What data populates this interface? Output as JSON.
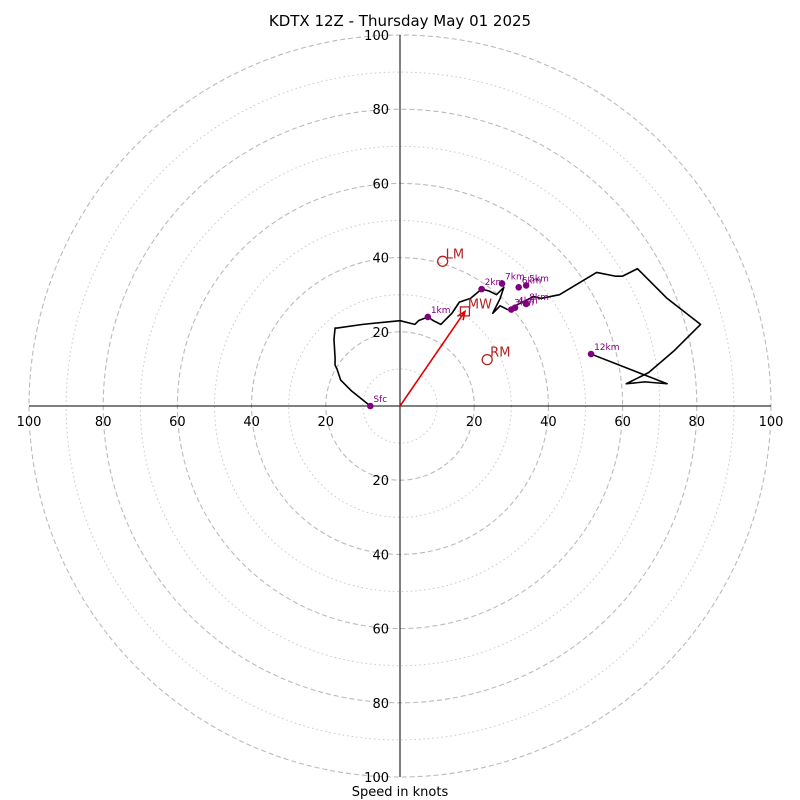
{
  "chart_data": {
    "type": "scatter",
    "subtype": "hodograph",
    "title": "KDTX 12Z - Thursday May 01 2025",
    "xlabel": "Speed in knots",
    "ylabel": "",
    "xlim": [
      -100,
      100
    ],
    "ylim": [
      -100,
      100
    ],
    "rings_dashed": [
      20,
      40,
      60,
      80,
      100
    ],
    "rings_dotted": [
      10,
      30,
      50,
      70,
      90
    ],
    "grid": true,
    "colors": {
      "hodograph": "#000000",
      "height_markers": "#800080",
      "storm_motion": "#b22222",
      "shear_vector": "#e00000",
      "grid": "#bbbbbb"
    },
    "ticks": {
      "left": [
        "100",
        "80",
        "60",
        "40",
        "20"
      ],
      "right": [
        "20",
        "40",
        "60",
        "80",
        "100"
      ],
      "top": [
        "20",
        "40",
        "60",
        "80",
        "100"
      ],
      "bottom": [
        "20",
        "40",
        "60",
        "80",
        "100"
      ]
    },
    "hodograph": {
      "u": [
        -8,
        -13,
        -16,
        -17,
        -17.5,
        -17.5,
        -17.8,
        -17.5,
        -17,
        -10,
        0,
        4,
        5,
        7.5,
        9,
        11,
        14,
        16,
        19,
        22,
        24,
        26,
        28,
        27,
        25,
        27,
        29,
        30,
        31,
        33,
        36,
        38,
        43,
        48,
        53,
        58,
        60,
        64,
        72,
        81,
        74,
        67,
        61,
        66,
        72,
        51.5
      ],
      "v": [
        0,
        4,
        7,
        10,
        11,
        13,
        18,
        21,
        21,
        22,
        23,
        22,
        23,
        24,
        23,
        22,
        25,
        28,
        29,
        31.5,
        31,
        30,
        32,
        29,
        25,
        27,
        26,
        26,
        27,
        28,
        29.5,
        29,
        30,
        33,
        36,
        35,
        35,
        37,
        29,
        22,
        15,
        9,
        6,
        6.5,
        6,
        14
      ]
    },
    "height_markers": [
      {
        "label": "Sfc",
        "u": -8,
        "v": 0
      },
      {
        "label": "1km",
        "u": 7.5,
        "v": 24
      },
      {
        "label": "2km",
        "u": 22,
        "v": 31.5
      },
      {
        "label": "3km",
        "u": 30,
        "v": 26
      },
      {
        "label": "4km",
        "u": 31,
        "v": 26.5
      },
      {
        "label": "5km",
        "u": 34,
        "v": 32.5
      },
      {
        "label": "6km",
        "u": 32,
        "v": 32
      },
      {
        "label": "7km",
        "u": 27.5,
        "v": 33
      },
      {
        "label": "8km",
        "u": 34,
        "v": 27.5
      },
      {
        "label": "12km",
        "u": 51.5,
        "v": 14
      }
    ],
    "storm_motions": [
      {
        "label": "LM",
        "u": 11.5,
        "v": 39,
        "marker": "circle"
      },
      {
        "label": "RM",
        "u": 23.5,
        "v": 12.5,
        "marker": "circle"
      },
      {
        "label": "MW",
        "u": 17.5,
        "v": 25.5,
        "marker": "square"
      }
    ],
    "shear_vector": {
      "u": 17.5,
      "v": 25.5
    }
  }
}
